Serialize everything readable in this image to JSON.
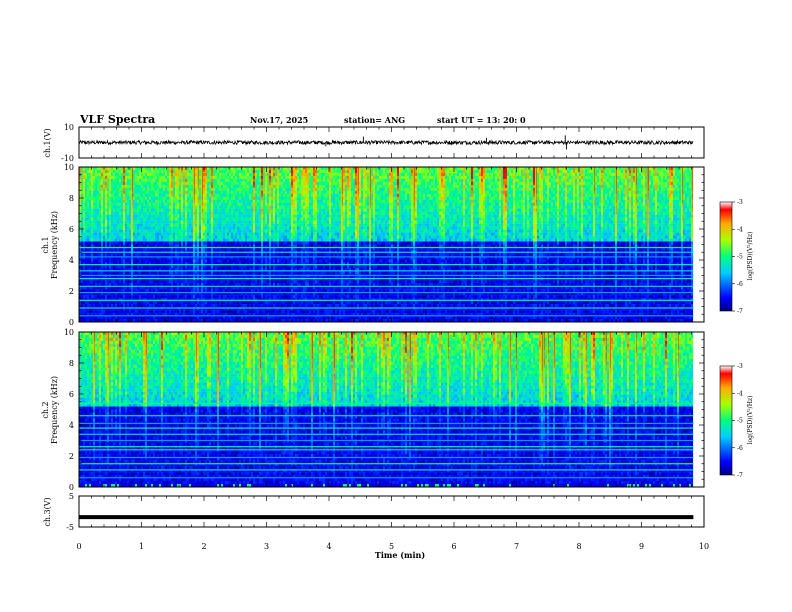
{
  "header": {
    "title": "VLF Spectra",
    "date": "Nov.17, 2025",
    "station": "station= ANG",
    "start": "start  UT  =   13: 20: 0"
  },
  "chart_data": [
    {
      "type": "line",
      "panel": "ch1-waveform",
      "ylabel": "ch.1(V)",
      "ylim": [
        -10,
        10
      ],
      "y_ticks": [
        "10",
        "-10"
      ],
      "xlim": [
        0,
        10
      ],
      "baseline_level": 0.0,
      "noise_amplitude": 1.2,
      "spikes": [
        {
          "x": 3.95,
          "y": -2.5
        },
        {
          "x": 4.55,
          "y": 3.8
        },
        {
          "x": 6.52,
          "y": 3.0
        },
        {
          "x": 7.78,
          "y": 4.6
        },
        {
          "x": 7.8,
          "y": -4.5
        }
      ]
    },
    {
      "type": "heatmap",
      "panel": "ch1-spectrogram",
      "ylabel_lines": [
        "ch.1",
        "Frequency  (kHz)"
      ],
      "ylim": [
        0,
        10
      ],
      "y_ticks": [
        "0",
        "2",
        "4",
        "6",
        "8",
        "10"
      ],
      "xlim": [
        0,
        10
      ],
      "colorbar": {
        "label": "log(PSD)(V²/Hz)",
        "range": [
          -7,
          -3
        ],
        "ticks": [
          "-3",
          "-4",
          "-5",
          "-6",
          "-7"
        ]
      },
      "data_extent_min": 9.83
    },
    {
      "type": "heatmap",
      "panel": "ch2-spectrogram",
      "ylabel_lines": [
        "ch.2",
        "Frequency  (kHz)"
      ],
      "ylim": [
        0,
        10
      ],
      "y_ticks": [
        "0",
        "2",
        "4",
        "6",
        "8",
        "10"
      ],
      "xlim": [
        0,
        10
      ],
      "colorbar": {
        "label": "log(PSD)(V²/Hz)",
        "range": [
          -7,
          -3
        ],
        "ticks": [
          "-3",
          "-4",
          "-5",
          "-6",
          "-7"
        ]
      },
      "data_extent_min": 9.83
    },
    {
      "type": "line",
      "panel": "ch3-waveform",
      "ylabel": "ch.3(V)",
      "ylim": [
        -5,
        5
      ],
      "y_ticks": [
        "5",
        "-5"
      ],
      "xlim": [
        0,
        10
      ],
      "x": [
        0,
        9.83
      ],
      "y": [
        -1.8,
        -1.8
      ],
      "xlabel": "Time  (min)",
      "x_ticks": [
        "0",
        "1",
        "2",
        "3",
        "4",
        "5",
        "6",
        "7",
        "8",
        "9",
        "10"
      ]
    }
  ]
}
